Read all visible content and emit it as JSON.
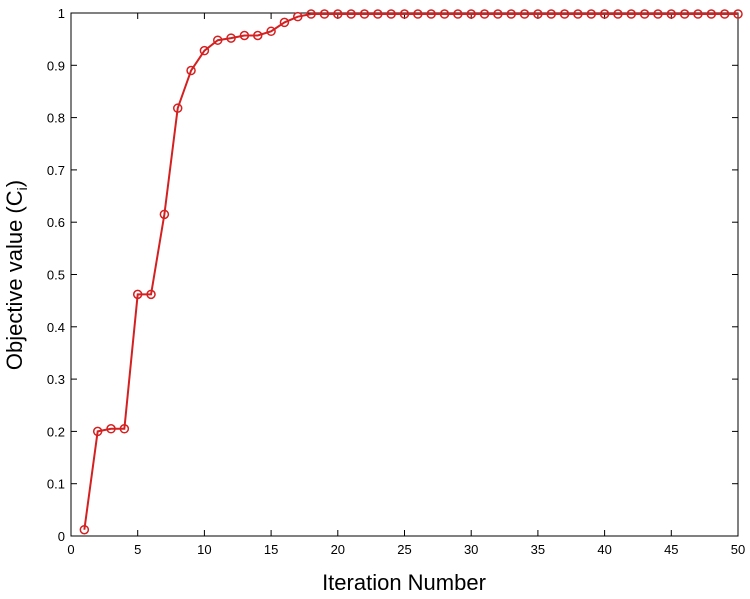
{
  "chart_data": {
    "type": "line",
    "title": "",
    "xlabel": "Iteration Number",
    "ylabel_main": "Objective value (C",
    "ylabel_sub": "i",
    "ylabel_close": ")",
    "xlim": [
      0,
      50
    ],
    "ylim": [
      0,
      1
    ],
    "xticks": [
      0,
      5,
      10,
      15,
      20,
      25,
      30,
      35,
      40,
      45,
      50
    ],
    "yticks": [
      0,
      0.1,
      0.2,
      0.3,
      0.4,
      0.5,
      0.6,
      0.7,
      0.8,
      0.9,
      1
    ],
    "xtick_labels": [
      "0",
      "5",
      "10",
      "15",
      "20",
      "25",
      "30",
      "35",
      "40",
      "45",
      "50"
    ],
    "ytick_labels": [
      "0",
      "0.1",
      "0.2",
      "0.3",
      "0.4",
      "0.5",
      "0.6",
      "0.7",
      "0.8",
      "0.9",
      "1"
    ],
    "grid": false,
    "series": [
      {
        "color": "#d42020",
        "marker": "circle",
        "x": [
          1,
          2,
          3,
          4,
          5,
          6,
          7,
          8,
          9,
          10,
          11,
          12,
          13,
          14,
          15,
          16,
          17,
          18,
          19,
          20,
          21,
          22,
          23,
          24,
          25,
          26,
          27,
          28,
          29,
          30,
          31,
          32,
          33,
          34,
          35,
          36,
          37,
          38,
          39,
          40,
          41,
          42,
          43,
          44,
          45,
          46,
          47,
          48,
          49,
          50
        ],
        "y": [
          0.012,
          0.2,
          0.205,
          0.205,
          0.462,
          0.462,
          0.615,
          0.818,
          0.89,
          0.928,
          0.948,
          0.952,
          0.957,
          0.957,
          0.965,
          0.982,
          0.993,
          0.998,
          0.998,
          0.998,
          0.998,
          0.998,
          0.998,
          0.998,
          0.998,
          0.998,
          0.998,
          0.998,
          0.998,
          0.998,
          0.998,
          0.998,
          0.998,
          0.998,
          0.998,
          0.998,
          0.998,
          0.998,
          0.998,
          0.998,
          0.998,
          0.998,
          0.998,
          0.998,
          0.998,
          0.998,
          0.998,
          0.998,
          0.998,
          0.998
        ]
      }
    ]
  }
}
